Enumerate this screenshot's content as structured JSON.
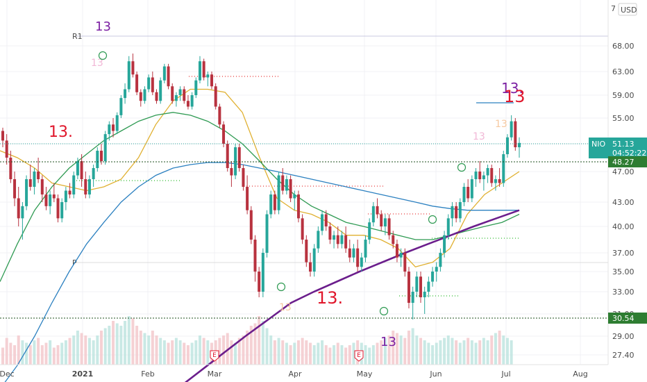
{
  "chart_data": {
    "type": "candlestick",
    "symbol": "NIO",
    "currency": "USD",
    "x_ticks": [
      "Dec",
      "2021",
      "Feb",
      "Mar",
      "Apr",
      "May",
      "Jun",
      "Jul",
      "Aug"
    ],
    "y_ticks": [
      "68.00",
      "63.00",
      "59.00",
      "55.00",
      "51.00",
      "47.00",
      "43.00",
      "40.00",
      "37.00",
      "35.00",
      "33.00",
      "31.00",
      "29.00",
      "27.40"
    ],
    "y_top_partial": "7",
    "last_price": "51.13",
    "countdown": "04:52:22",
    "support_levels": [
      "48.27",
      "30.54"
    ],
    "pivot_labels": [
      "R1",
      "P"
    ],
    "setup_labels": [
      "13",
      "13.",
      "13.",
      "13",
      "13.",
      "13"
    ],
    "event_marker": "E",
    "candles": [
      [
        53.0,
        53.5,
        50.5,
        51.5
      ],
      [
        51.5,
        52.5,
        48.0,
        49.0
      ],
      [
        49.0,
        50.0,
        45.5,
        46.0
      ],
      [
        46.0,
        47.0,
        42.5,
        43.5
      ],
      [
        43.5,
        45.0,
        40.0,
        41.0
      ],
      [
        41.0,
        43.0,
        38.5,
        42.5
      ],
      [
        42.5,
        46.5,
        42.0,
        46.0
      ],
      [
        46.0,
        48.0,
        44.5,
        45.0
      ],
      [
        45.0,
        47.5,
        44.0,
        47.0
      ],
      [
        47.0,
        49.0,
        45.5,
        46.0
      ],
      [
        46.0,
        46.5,
        43.0,
        44.0
      ],
      [
        44.0,
        45.0,
        42.0,
        42.5
      ],
      [
        42.5,
        44.5,
        41.5,
        44.0
      ],
      [
        44.0,
        45.5,
        43.0,
        43.5
      ],
      [
        43.5,
        44.0,
        40.5,
        41.0
      ],
      [
        41.0,
        43.5,
        40.5,
        43.0
      ],
      [
        43.0,
        45.0,
        42.0,
        44.5
      ],
      [
        44.5,
        45.5,
        43.5,
        44.0
      ],
      [
        44.0,
        47.0,
        43.5,
        46.5
      ],
      [
        46.5,
        49.0,
        46.0,
        48.5
      ],
      [
        48.5,
        49.5,
        45.0,
        46.0
      ],
      [
        46.0,
        47.0,
        43.5,
        44.0
      ],
      [
        44.0,
        46.5,
        43.5,
        46.0
      ],
      [
        46.0,
        48.0,
        45.0,
        47.5
      ],
      [
        47.5,
        50.5,
        47.0,
        50.0
      ],
      [
        50.0,
        51.0,
        48.0,
        48.5
      ],
      [
        48.5,
        53.0,
        48.0,
        52.5
      ],
      [
        52.5,
        54.5,
        51.5,
        54.0
      ],
      [
        54.0,
        55.0,
        52.0,
        53.0
      ],
      [
        53.0,
        56.0,
        52.5,
        55.5
      ],
      [
        55.5,
        59.0,
        55.0,
        58.5
      ],
      [
        58.5,
        61.0,
        57.5,
        60.0
      ],
      [
        60.0,
        66.0,
        59.5,
        65.0
      ],
      [
        65.0,
        66.5,
        62.0,
        62.5
      ],
      [
        62.5,
        63.0,
        59.0,
        59.5
      ],
      [
        59.5,
        60.0,
        57.0,
        58.0
      ],
      [
        58.0,
        60.5,
        57.5,
        60.0
      ],
      [
        60.0,
        62.5,
        59.5,
        62.0
      ],
      [
        62.0,
        63.0,
        59.0,
        59.5
      ],
      [
        59.5,
        60.0,
        57.5,
        58.0
      ],
      [
        58.0,
        62.0,
        57.5,
        61.5
      ],
      [
        61.5,
        64.5,
        61.0,
        64.0
      ],
      [
        64.0,
        64.5,
        60.0,
        60.5
      ],
      [
        60.5,
        61.0,
        57.5,
        58.0
      ],
      [
        58.0,
        59.5,
        57.0,
        59.0
      ],
      [
        59.0,
        60.5,
        58.0,
        60.0
      ],
      [
        60.0,
        60.5,
        57.5,
        58.0
      ],
      [
        58.0,
        59.0,
        56.5,
        57.0
      ],
      [
        57.0,
        59.5,
        56.5,
        59.0
      ],
      [
        59.0,
        62.0,
        58.5,
        61.5
      ],
      [
        61.5,
        66.0,
        61.0,
        65.0
      ],
      [
        65.0,
        65.5,
        61.5,
        62.0
      ],
      [
        62.0,
        63.0,
        60.5,
        62.5
      ],
      [
        62.5,
        63.0,
        60.0,
        60.5
      ],
      [
        60.5,
        61.0,
        56.5,
        57.0
      ],
      [
        57.0,
        57.5,
        53.5,
        54.0
      ],
      [
        54.0,
        54.5,
        50.5,
        51.0
      ],
      [
        51.0,
        51.5,
        47.0,
        47.5
      ],
      [
        47.5,
        48.5,
        45.0,
        46.5
      ],
      [
        46.5,
        51.0,
        46.0,
        50.5
      ],
      [
        50.5,
        51.0,
        47.0,
        47.5
      ],
      [
        47.5,
        48.0,
        44.5,
        45.0
      ],
      [
        45.0,
        46.5,
        41.5,
        42.0
      ],
      [
        42.0,
        42.5,
        38.0,
        38.5
      ],
      [
        38.5,
        39.0,
        34.0,
        35.0
      ],
      [
        35.0,
        35.5,
        32.5,
        33.0
      ],
      [
        33.0,
        37.5,
        32.5,
        37.0
      ],
      [
        37.0,
        42.0,
        36.5,
        41.5
      ],
      [
        41.5,
        44.5,
        41.0,
        44.0
      ],
      [
        44.0,
        44.5,
        41.5,
        42.0
      ],
      [
        42.0,
        47.0,
        41.5,
        46.5
      ],
      [
        46.5,
        47.5,
        44.0,
        44.5
      ],
      [
        44.5,
        46.5,
        44.0,
        46.0
      ],
      [
        46.0,
        46.5,
        43.0,
        43.5
      ],
      [
        43.5,
        44.5,
        42.0,
        44.0
      ],
      [
        44.0,
        44.5,
        40.5,
        41.0
      ],
      [
        41.0,
        41.5,
        38.0,
        38.5
      ],
      [
        38.5,
        39.0,
        35.5,
        36.0
      ],
      [
        36.0,
        37.0,
        34.5,
        35.0
      ],
      [
        35.0,
        38.0,
        34.5,
        37.5
      ],
      [
        37.5,
        40.0,
        37.0,
        39.5
      ],
      [
        39.5,
        42.0,
        39.0,
        41.5
      ],
      [
        41.5,
        42.0,
        39.5,
        40.0
      ],
      [
        40.0,
        40.5,
        38.0,
        38.5
      ],
      [
        38.5,
        39.5,
        37.5,
        39.0
      ],
      [
        39.0,
        40.0,
        37.5,
        38.0
      ],
      [
        38.0,
        39.5,
        37.5,
        39.0
      ],
      [
        39.0,
        40.0,
        37.0,
        37.5
      ],
      [
        37.5,
        38.5,
        36.0,
        36.5
      ],
      [
        36.5,
        38.0,
        36.0,
        37.5
      ],
      [
        37.5,
        38.5,
        35.0,
        35.5
      ],
      [
        35.5,
        37.0,
        35.0,
        36.5
      ],
      [
        36.5,
        39.0,
        36.0,
        38.5
      ],
      [
        38.5,
        41.0,
        38.0,
        40.5
      ],
      [
        40.5,
        43.0,
        40.0,
        42.5
      ],
      [
        42.5,
        43.5,
        41.0,
        41.5
      ],
      [
        41.5,
        42.0,
        39.5,
        40.0
      ],
      [
        40.0,
        41.5,
        39.0,
        41.0
      ],
      [
        41.0,
        41.5,
        38.5,
        39.0
      ],
      [
        39.0,
        39.5,
        37.5,
        38.0
      ],
      [
        38.0,
        38.5,
        36.0,
        36.5
      ],
      [
        36.5,
        37.5,
        35.5,
        37.0
      ],
      [
        37.0,
        37.5,
        34.5,
        35.0
      ],
      [
        35.0,
        35.5,
        31.5,
        32.0
      ],
      [
        32.0,
        33.5,
        30.5,
        33.0
      ],
      [
        33.0,
        35.0,
        32.5,
        34.5
      ],
      [
        34.5,
        35.0,
        32.0,
        32.5
      ],
      [
        32.5,
        33.5,
        31.0,
        33.0
      ],
      [
        33.0,
        34.5,
        32.5,
        34.0
      ],
      [
        34.0,
        35.5,
        33.5,
        35.0
      ],
      [
        35.0,
        36.0,
        34.0,
        35.5
      ],
      [
        35.5,
        37.5,
        35.0,
        37.0
      ],
      [
        37.0,
        39.5,
        36.5,
        39.0
      ],
      [
        39.0,
        41.5,
        38.5,
        41.0
      ],
      [
        41.0,
        43.0,
        40.0,
        42.5
      ],
      [
        42.5,
        43.0,
        40.5,
        41.0
      ],
      [
        41.0,
        43.5,
        40.5,
        43.0
      ],
      [
        43.0,
        45.5,
        42.5,
        45.0
      ],
      [
        45.0,
        46.0,
        43.0,
        43.5
      ],
      [
        43.5,
        46.5,
        43.0,
        46.0
      ],
      [
        46.0,
        47.5,
        45.0,
        47.0
      ],
      [
        47.0,
        48.5,
        45.5,
        46.0
      ],
      [
        46.0,
        47.0,
        44.5,
        46.5
      ],
      [
        46.5,
        48.0,
        45.5,
        47.5
      ],
      [
        47.5,
        48.0,
        45.0,
        45.5
      ],
      [
        45.5,
        46.5,
        44.5,
        46.0
      ],
      [
        46.0,
        47.5,
        45.0,
        45.5
      ],
      [
        45.5,
        50.0,
        45.0,
        49.5
      ],
      [
        49.5,
        52.5,
        49.0,
        52.0
      ],
      [
        52.0,
        55.5,
        51.5,
        54.5
      ],
      [
        54.5,
        55.0,
        50.0,
        50.5
      ],
      [
        50.5,
        52.0,
        49.0,
        51.13
      ]
    ],
    "moving_averages": [
      {
        "name": "",
        "color": "#e0b030",
        "values": [
          50.0,
          49.0,
          47.5,
          45.5,
          45.0,
          44.5,
          45.0,
          46.0,
          49.0,
          54.0,
          58.0,
          60.0,
          60.0,
          59.5,
          56.0,
          49.0,
          43.5,
          42.0,
          41.5,
          40.5,
          39.0,
          39.0,
          38.5,
          37.5,
          35.5,
          36.0,
          37.5,
          41.5,
          44.0,
          45.5,
          47.0
        ]
      },
      {
        "name": "",
        "color": "#2e9a52",
        "values": [
          34.0,
          38.0,
          42.0,
          45.0,
          47.5,
          49.5,
          51.5,
          53.0,
          54.5,
          55.5,
          56.0,
          55.5,
          54.5,
          53.0,
          51.0,
          48.5,
          46.0,
          44.0,
          42.5,
          41.5,
          40.5,
          40.0,
          39.5,
          39.0,
          38.5,
          38.5,
          39.0,
          39.5,
          40.0,
          40.5,
          41.5
        ]
      },
      {
        "name": "",
        "color": "#2b80c0",
        "values": [
          24.5,
          26.5,
          29.0,
          32.0,
          35.0,
          38.0,
          40.5,
          43.0,
          45.0,
          46.5,
          47.5,
          48.0,
          48.3,
          48.3,
          48.0,
          47.5,
          47.0,
          46.5,
          46.0,
          45.5,
          45.0,
          44.5,
          44.0,
          43.5,
          43.0,
          42.5,
          42.2,
          42.0,
          42.0,
          42.0,
          42.0
        ]
      },
      {
        "name": "",
        "color": "#6b1e8c",
        "values": [
          24.5,
          26.0,
          27.5,
          29.0,
          30.5,
          32.0,
          33.0,
          34.0,
          35.0,
          36.0,
          37.0,
          38.0,
          39.0,
          40.0,
          41.0,
          42.0
        ]
      }
    ],
    "volume_relative": [
      0.35,
      0.55,
      0.45,
      0.4,
      0.6,
      0.5,
      0.45,
      0.4,
      0.5,
      0.55,
      0.4,
      0.45,
      0.5,
      0.35,
      0.4,
      0.45,
      0.5,
      0.55,
      0.6,
      0.7,
      0.65,
      0.6,
      0.55,
      0.5,
      0.6,
      0.7,
      0.75,
      0.8,
      0.9,
      0.85,
      0.8,
      0.9,
      1.0,
      0.95,
      0.8,
      0.7,
      0.65,
      0.6,
      0.7,
      0.6,
      0.55,
      0.5,
      0.45,
      0.5,
      0.55,
      0.5,
      0.45,
      0.4,
      0.45,
      0.5,
      0.6,
      0.55,
      0.5,
      0.45,
      0.5,
      0.55,
      0.6,
      0.65,
      0.5,
      0.45,
      0.55,
      0.6,
      0.7,
      0.8,
      0.85,
      1.0,
      0.9,
      0.75,
      0.6,
      0.5,
      0.55,
      0.5,
      0.45,
      0.4,
      0.45,
      0.5,
      0.55,
      0.5,
      0.45,
      0.4,
      0.45,
      0.5,
      0.4,
      0.35,
      0.4,
      0.45,
      0.4,
      0.35,
      0.4,
      0.45,
      0.5,
      0.45,
      0.4,
      0.35,
      0.4,
      0.45,
      0.5,
      0.55,
      0.6,
      0.7,
      0.65,
      0.6,
      0.55,
      0.7,
      0.75,
      0.6,
      0.55,
      0.5,
      0.45,
      0.4,
      0.45,
      0.5,
      0.55,
      0.6,
      0.55,
      0.5,
      0.45,
      0.5,
      0.55,
      0.5,
      0.45,
      0.5,
      0.55,
      0.5,
      0.6,
      0.65,
      0.7,
      0.6,
      0.55,
      0.5
    ],
    "colors": {
      "up": "#26a69a",
      "down": "#b8323f",
      "price_tag": "#26a69a",
      "support_tag": "#2e7d32",
      "setup_red": "#e0162b",
      "setup_purple": "#7b1fa2",
      "pivot_line": "#c8c8e0"
    }
  }
}
